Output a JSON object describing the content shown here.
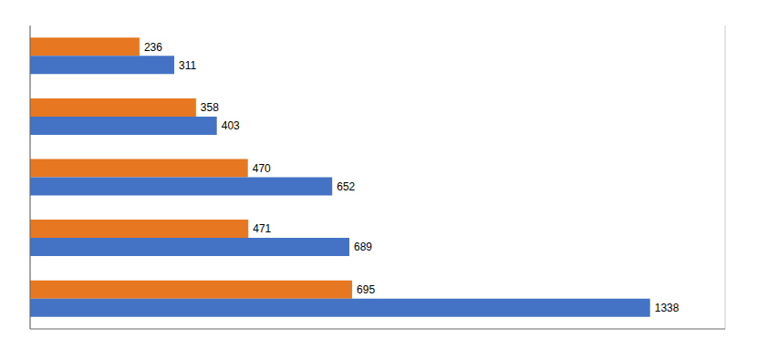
{
  "chart_data": {
    "type": "bar",
    "orientation": "horizontal",
    "categories": [
      null,
      null,
      null,
      null,
      null
    ],
    "series": [
      {
        "color": "#E87722",
        "values": [
          236,
          358,
          470,
          471,
          695
        ]
      },
      {
        "color": "#4472C4",
        "values": [
          311,
          403,
          652,
          689,
          1338
        ]
      }
    ],
    "xlim": [
      0,
      1500
    ],
    "xticks": [
      0,
      200,
      400,
      600,
      800,
      1000,
      1200,
      1400
    ],
    "grid": true,
    "data_labels": true,
    "tick_labels": false
  }
}
